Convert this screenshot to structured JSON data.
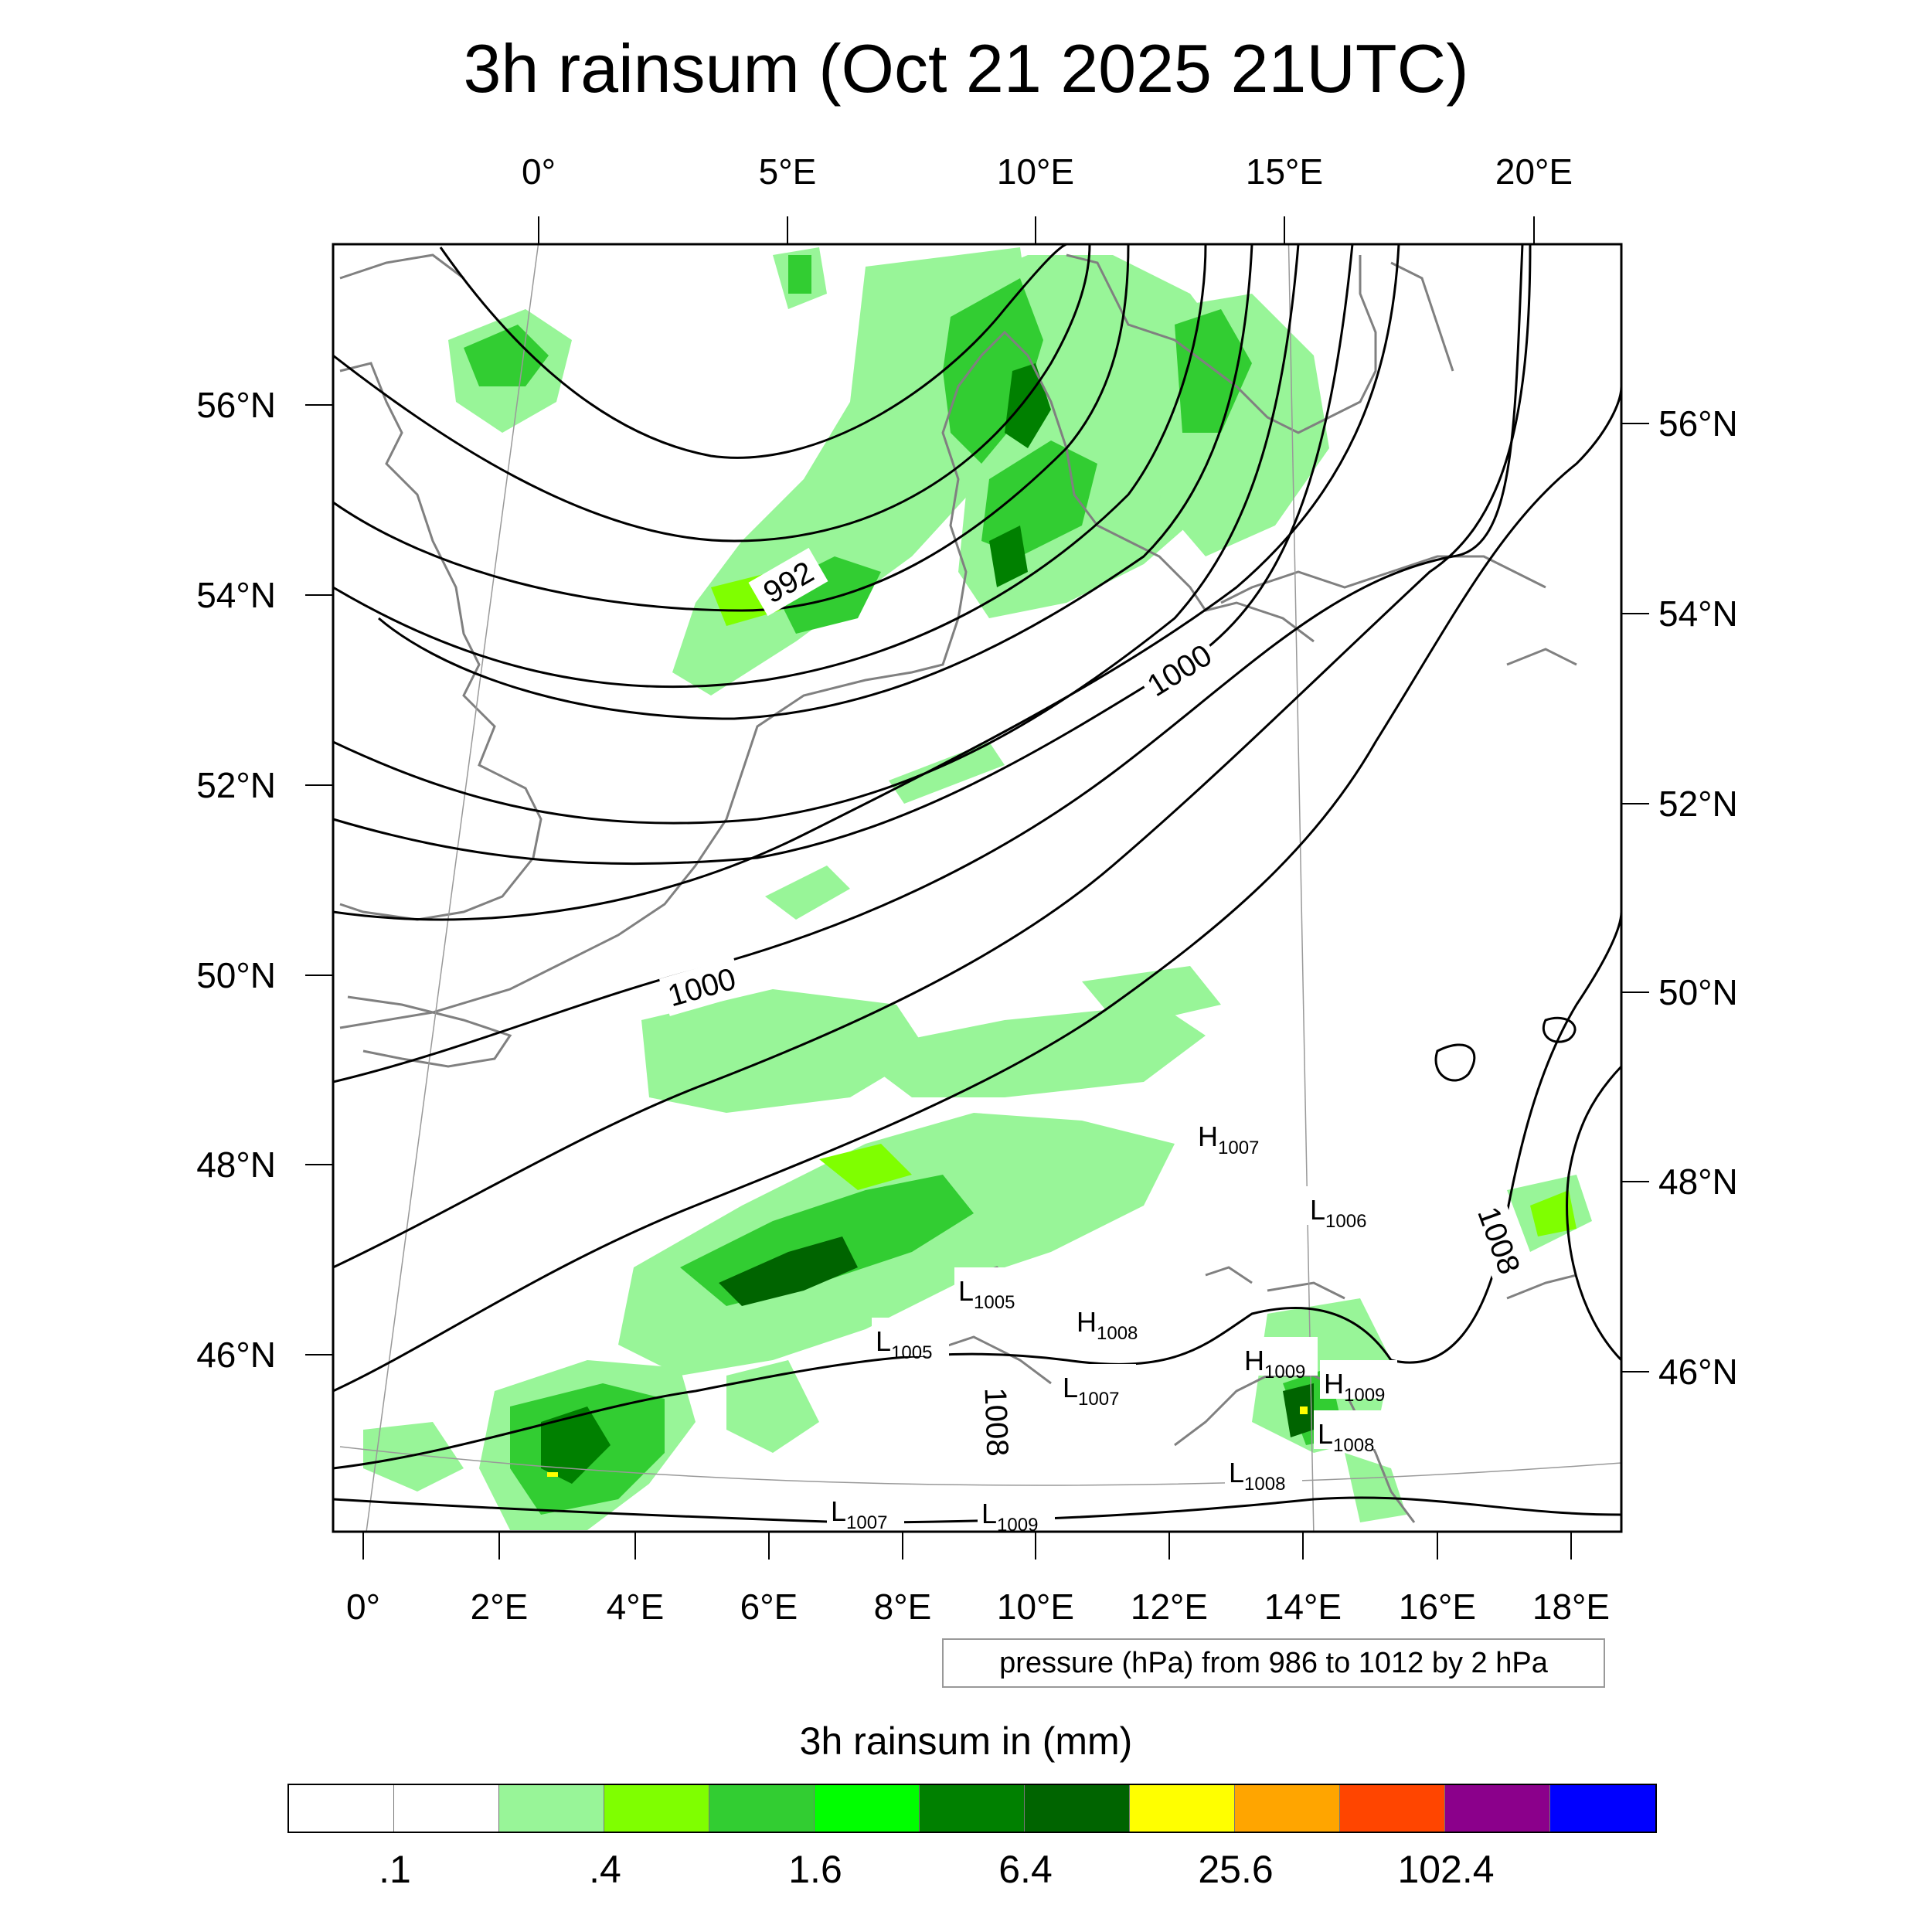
{
  "title": "3h rainsum (Oct 21 2025 21UTC)",
  "top_lon_labels": [
    "0°",
    "5°E",
    "10°E",
    "15°E",
    "20°E"
  ],
  "bottom_lon_labels": [
    "0°",
    "2°E",
    "4°E",
    "6°E",
    "8°E",
    "10°E",
    "12°E",
    "14°E",
    "16°E",
    "18°E"
  ],
  "left_lat_labels": [
    "56°N",
    "54°N",
    "52°N",
    "50°N",
    "48°N",
    "46°N"
  ],
  "right_lat_labels": [
    "56°N",
    "54°N",
    "52°N",
    "50°N",
    "48°N",
    "46°N"
  ],
  "isobar_labels": [
    "992",
    "1000",
    "1000",
    "1008",
    "1008"
  ],
  "pressure_centers": [
    {
      "letter": "H",
      "value": "1007"
    },
    {
      "letter": "L",
      "value": "1006"
    },
    {
      "letter": "L",
      "value": "1005"
    },
    {
      "letter": "H",
      "value": "1008"
    },
    {
      "letter": "L",
      "value": "1005"
    },
    {
      "letter": "L",
      "value": "1007"
    },
    {
      "letter": "H",
      "value": "1009"
    },
    {
      "letter": "H",
      "value": "1009"
    },
    {
      "letter": "L",
      "value": "1008"
    },
    {
      "letter": "L",
      "value": "1008"
    },
    {
      "letter": "L",
      "value": "1007"
    },
    {
      "letter": "L",
      "value": "1009"
    }
  ],
  "contour_info": "pressure (hPa) from 986 to 1012 by 2 hPa",
  "colorbar": {
    "title": "3h rainsum in (mm)",
    "colors": [
      "#ffffff",
      "#ffffff",
      "#98f598",
      "#7fff00",
      "#32cd32",
      "#00ff00",
      "#008000",
      "#006400",
      "#ffff00",
      "#ffa500",
      "#ff4500",
      "#8b008b",
      "#0000ff"
    ],
    "tick_labels": [
      ".1",
      ".4",
      "1.6",
      "6.4",
      "25.6",
      "102.4"
    ]
  },
  "colors": {
    "coastline": "#808080",
    "isobar": "#000000",
    "grid": "#999999"
  }
}
